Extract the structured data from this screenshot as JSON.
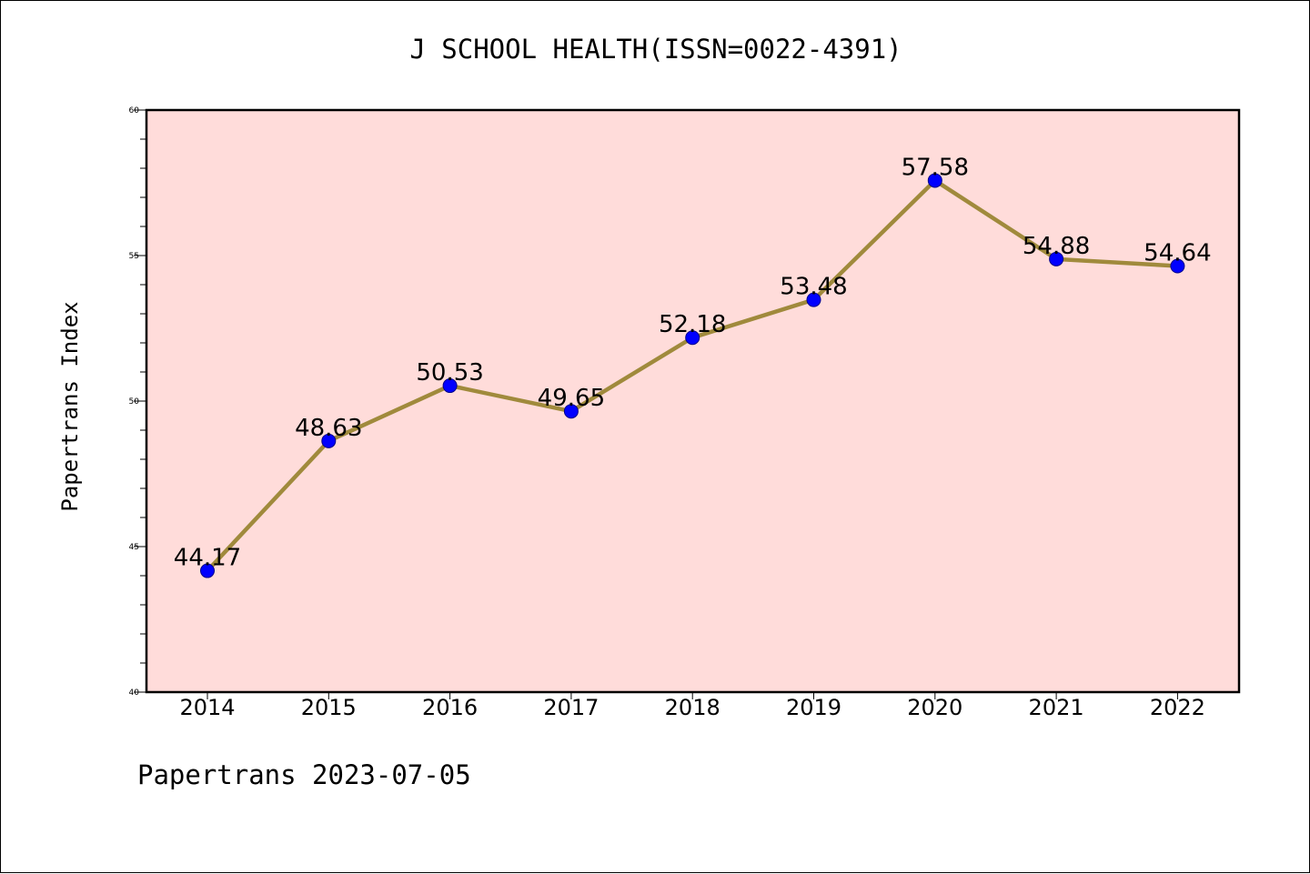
{
  "chart_data": {
    "type": "line",
    "title": "J SCHOOL HEALTH(ISSN=0022-4391)",
    "xlabel": "",
    "ylabel": "Papertrans Index",
    "footer": "Papertrans 2023-07-05",
    "categories": [
      "2014",
      "2015",
      "2016",
      "2017",
      "2018",
      "2019",
      "2020",
      "2021",
      "2022"
    ],
    "values": [
      44.17,
      48.63,
      50.53,
      49.65,
      52.18,
      53.48,
      57.58,
      54.88,
      54.64
    ],
    "data_labels": [
      "44.17",
      "48.63",
      "50.53",
      "49.65",
      "52.18",
      "53.48",
      "57.58",
      "54.88",
      "54.64"
    ],
    "ylim": [
      40,
      60
    ],
    "yticks": [
      "40",
      "45",
      "50",
      "55",
      "60"
    ],
    "grid": false,
    "legend": "none",
    "colors": {
      "plot_background": "#ffdcda",
      "line": "#a08a3c",
      "marker": "#0000ff",
      "axis": "#000000"
    }
  }
}
